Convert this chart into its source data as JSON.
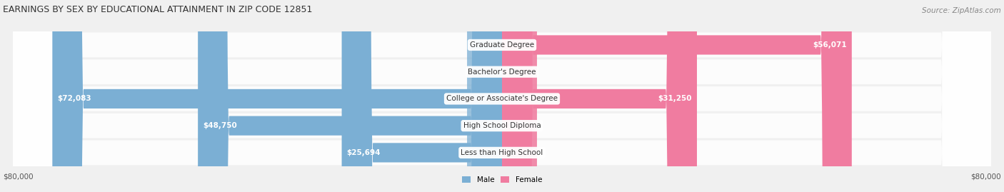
{
  "title": "EARNINGS BY SEX BY EDUCATIONAL ATTAINMENT IN ZIP CODE 12851",
  "source": "Source: ZipAtlas.com",
  "categories": [
    "Less than High School",
    "High School Diploma",
    "College or Associate's Degree",
    "Bachelor's Degree",
    "Graduate Degree"
  ],
  "male_values": [
    25694,
    48750,
    72083,
    0,
    0
  ],
  "female_values": [
    0,
    0,
    31250,
    0,
    56071
  ],
  "max_value": 80000,
  "male_color": "#7BAFD4",
  "female_color": "#F07CA0",
  "male_label": "Male",
  "female_label": "Female",
  "background_color": "#f0f0f0",
  "row_bg_color": "#e8e8e8",
  "axis_label_left": "$80,000",
  "axis_label_right": "$80,000",
  "title_fontsize": 9,
  "source_fontsize": 7.5,
  "bar_label_fontsize": 7.5,
  "cat_label_fontsize": 7.5,
  "axis_tick_fontsize": 7.5
}
